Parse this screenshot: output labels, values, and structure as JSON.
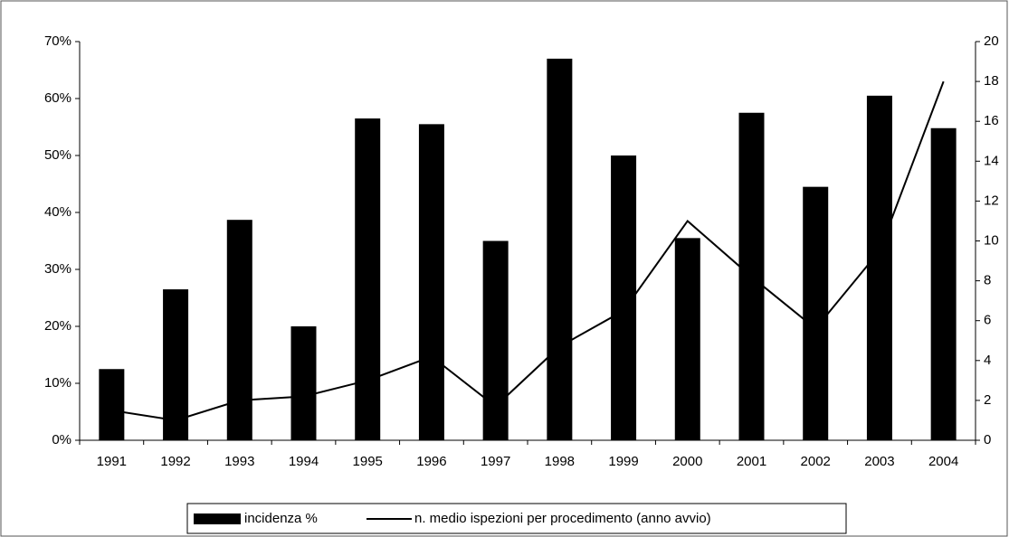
{
  "chart_data": {
    "type": "bar-line",
    "categories": [
      "1991",
      "1992",
      "1993",
      "1994",
      "1995",
      "1996",
      "1997",
      "1998",
      "1999",
      "2000",
      "2001",
      "2002",
      "2003",
      "2004"
    ],
    "series": [
      {
        "name": "incidenza %",
        "type": "bar",
        "color": "#000000",
        "values": [
          12.5,
          26.5,
          38.7,
          20,
          56.5,
          55.5,
          35,
          67,
          50,
          35.5,
          57.5,
          44.5,
          60.5,
          54.8
        ]
      },
      {
        "name": "n. medio ispezioni per procedimento (anno avvio)",
        "type": "line",
        "axis": "y2",
        "color": "#000000",
        "values": [
          1.5,
          1.0,
          2.0,
          2.2,
          3.0,
          4.2,
          1.7,
          4.7,
          6.5,
          11,
          8.2,
          5.6,
          9.5,
          18
        ]
      }
    ],
    "ylim": [
      0,
      70
    ],
    "yticks": [
      {
        "value": 0,
        "label": "0%"
      },
      {
        "value": 10,
        "label": "10%"
      },
      {
        "value": 20,
        "label": "20%"
      },
      {
        "value": 30,
        "label": "30%"
      },
      {
        "value": 40,
        "label": "40%"
      },
      {
        "value": 50,
        "label": "50%"
      },
      {
        "value": 60,
        "label": "60%"
      },
      {
        "value": 70,
        "label": "70%"
      }
    ],
    "y2lim": [
      0,
      20
    ],
    "y2ticks": [
      0,
      2,
      4,
      6,
      8,
      10,
      12,
      14,
      16,
      18,
      20
    ],
    "grid": false,
    "legend": "bottom"
  }
}
